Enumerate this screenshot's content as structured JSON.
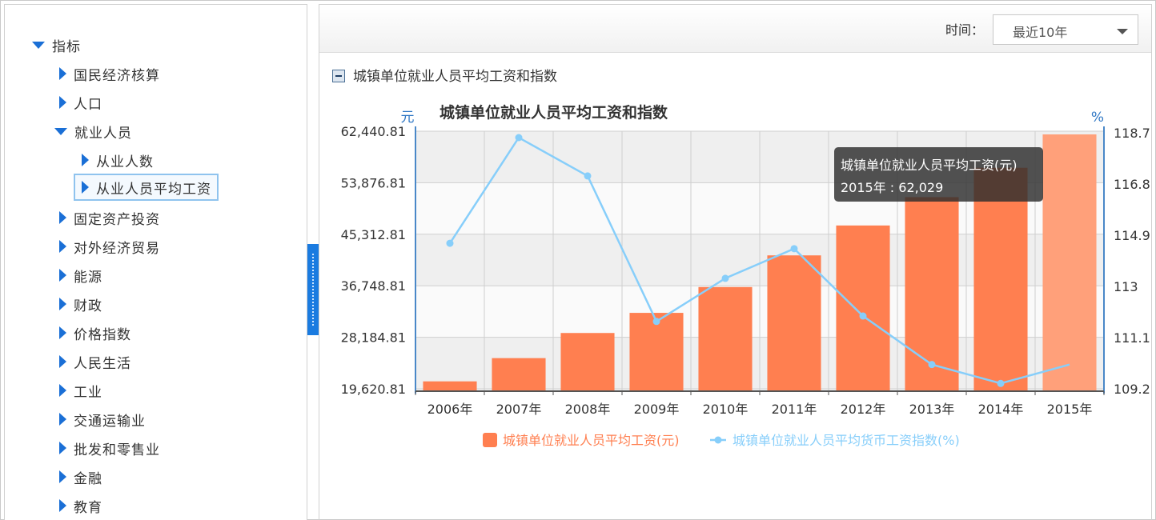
{
  "sidebar": {
    "root": "指标",
    "items": [
      {
        "label": "国民经济核算",
        "state": "collapsed"
      },
      {
        "label": "人口",
        "state": "collapsed"
      },
      {
        "label": "就业人员",
        "state": "expanded"
      },
      {
        "label": "固定资产投资",
        "state": "collapsed"
      },
      {
        "label": "对外经济贸易",
        "state": "collapsed"
      },
      {
        "label": "能源",
        "state": "collapsed"
      },
      {
        "label": "财政",
        "state": "collapsed"
      },
      {
        "label": "价格指数",
        "state": "collapsed"
      },
      {
        "label": "人民生活",
        "state": "collapsed"
      },
      {
        "label": "工业",
        "state": "collapsed"
      },
      {
        "label": "交通运输业",
        "state": "collapsed"
      },
      {
        "label": "批发和零售业",
        "state": "collapsed"
      },
      {
        "label": "金融",
        "state": "collapsed"
      },
      {
        "label": "教育",
        "state": "collapsed"
      }
    ],
    "children": [
      {
        "label": "从业人数",
        "selected": false
      },
      {
        "label": "从业人员平均工资",
        "selected": true
      }
    ]
  },
  "toolbar": {
    "time_label": "时间：",
    "time_value": "最近10年"
  },
  "section": {
    "title": "城镇单位就业人员平均工资和指数"
  },
  "chart_data": {
    "type": "bar+line",
    "title": "城镇单位就业人员平均工资和指数",
    "y_left_unit": "元",
    "y_right_unit": "%",
    "categories": [
      "2006年",
      "2007年",
      "2008年",
      "2009年",
      "2010年",
      "2011年",
      "2012年",
      "2013年",
      "2014年",
      "2015年"
    ],
    "y_left_ticks": [
      "62,440.81",
      "53,876.81",
      "45,312.81",
      "36,748.81",
      "28,184.81",
      "19,620.81"
    ],
    "y_left_tick_values": [
      62440.81,
      53876.81,
      45312.81,
      36748.81,
      28184.81,
      19620.81
    ],
    "y_right_ticks": [
      "118.7",
      "116.8",
      "114.9",
      "113",
      "111.1",
      "109.2"
    ],
    "y_right_tick_values": [
      118.7,
      116.8,
      114.9,
      113,
      111.1,
      109.2
    ],
    "y_left_range": [
      19620.81,
      62440.81
    ],
    "y_right_range": [
      109.2,
      118.7
    ],
    "grid": true,
    "legend_position": "bottom",
    "series": [
      {
        "name": "城镇单位就业人员平均工资(元)",
        "kind": "bar",
        "color": "#ff7f50",
        "values": [
          20856,
          24721,
          28898,
          32244,
          36539,
          41799,
          46769,
          51483,
          56360,
          62029
        ]
      },
      {
        "name": "城镇单位就业人员平均货币工资指数(%)",
        "kind": "line",
        "color": "#87cefa",
        "values": [
          114.6,
          118.8,
          117.1,
          111.7,
          113.3,
          114.4,
          111.9,
          110.1,
          109.4,
          110.1
        ]
      }
    ],
    "highlighted_index": 9,
    "highlight_color": "#ffa07a",
    "tooltip": {
      "title": "城镇单位就业人员平均工资(元)",
      "text": "2015年 : 62,029"
    }
  }
}
